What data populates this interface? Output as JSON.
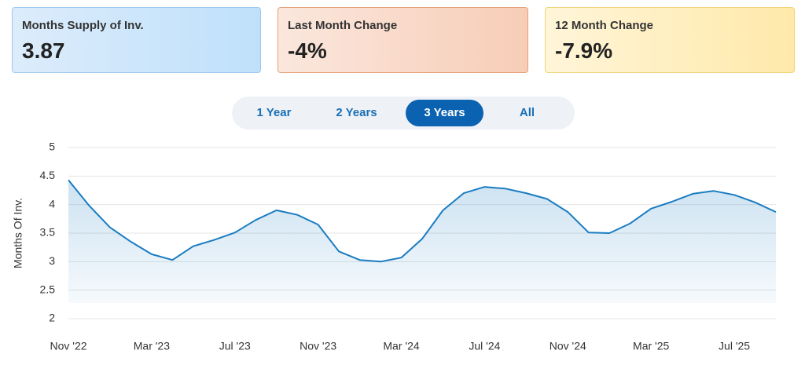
{
  "cards": [
    {
      "label": "Months Supply of Inv.",
      "value": "3.87"
    },
    {
      "label": "Last Month Change",
      "value": "-4%"
    },
    {
      "label": "12 Month Change",
      "value": "-7.9%"
    }
  ],
  "tabs": {
    "items": [
      "1 Year",
      "2 Years",
      "3 Years",
      "All"
    ],
    "active": 2
  },
  "chart_data": {
    "type": "line",
    "y_label": "Months Of Inv.",
    "color": "#1a7cc1",
    "grid": true,
    "categories": [
      "Nov '22",
      null,
      null,
      null,
      "Mar '23",
      null,
      null,
      null,
      "Jul '23",
      null,
      null,
      null,
      "Nov '23",
      null,
      null,
      null,
      "Mar '24",
      null,
      null,
      null,
      "Jul '24",
      null,
      null,
      null,
      "Nov '24",
      null,
      null,
      null,
      "Mar '25",
      null,
      null,
      null,
      "Jul '25",
      null,
      null
    ],
    "values": [
      4.43,
      3.98,
      3.6,
      3.35,
      3.13,
      3.03,
      3.27,
      3.38,
      3.51,
      3.73,
      3.9,
      3.82,
      3.65,
      3.18,
      3.03,
      3.0,
      3.07,
      3.4,
      3.9,
      4.2,
      4.31,
      4.28,
      4.2,
      4.1,
      3.87,
      3.51,
      3.5,
      3.67,
      3.93,
      4.05,
      4.19,
      4.24,
      4.17,
      4.04,
      3.87
    ],
    "ylim": [
      2,
      5
    ],
    "yticks": [
      2,
      2.5,
      3,
      3.5,
      4,
      4.5,
      5
    ]
  }
}
